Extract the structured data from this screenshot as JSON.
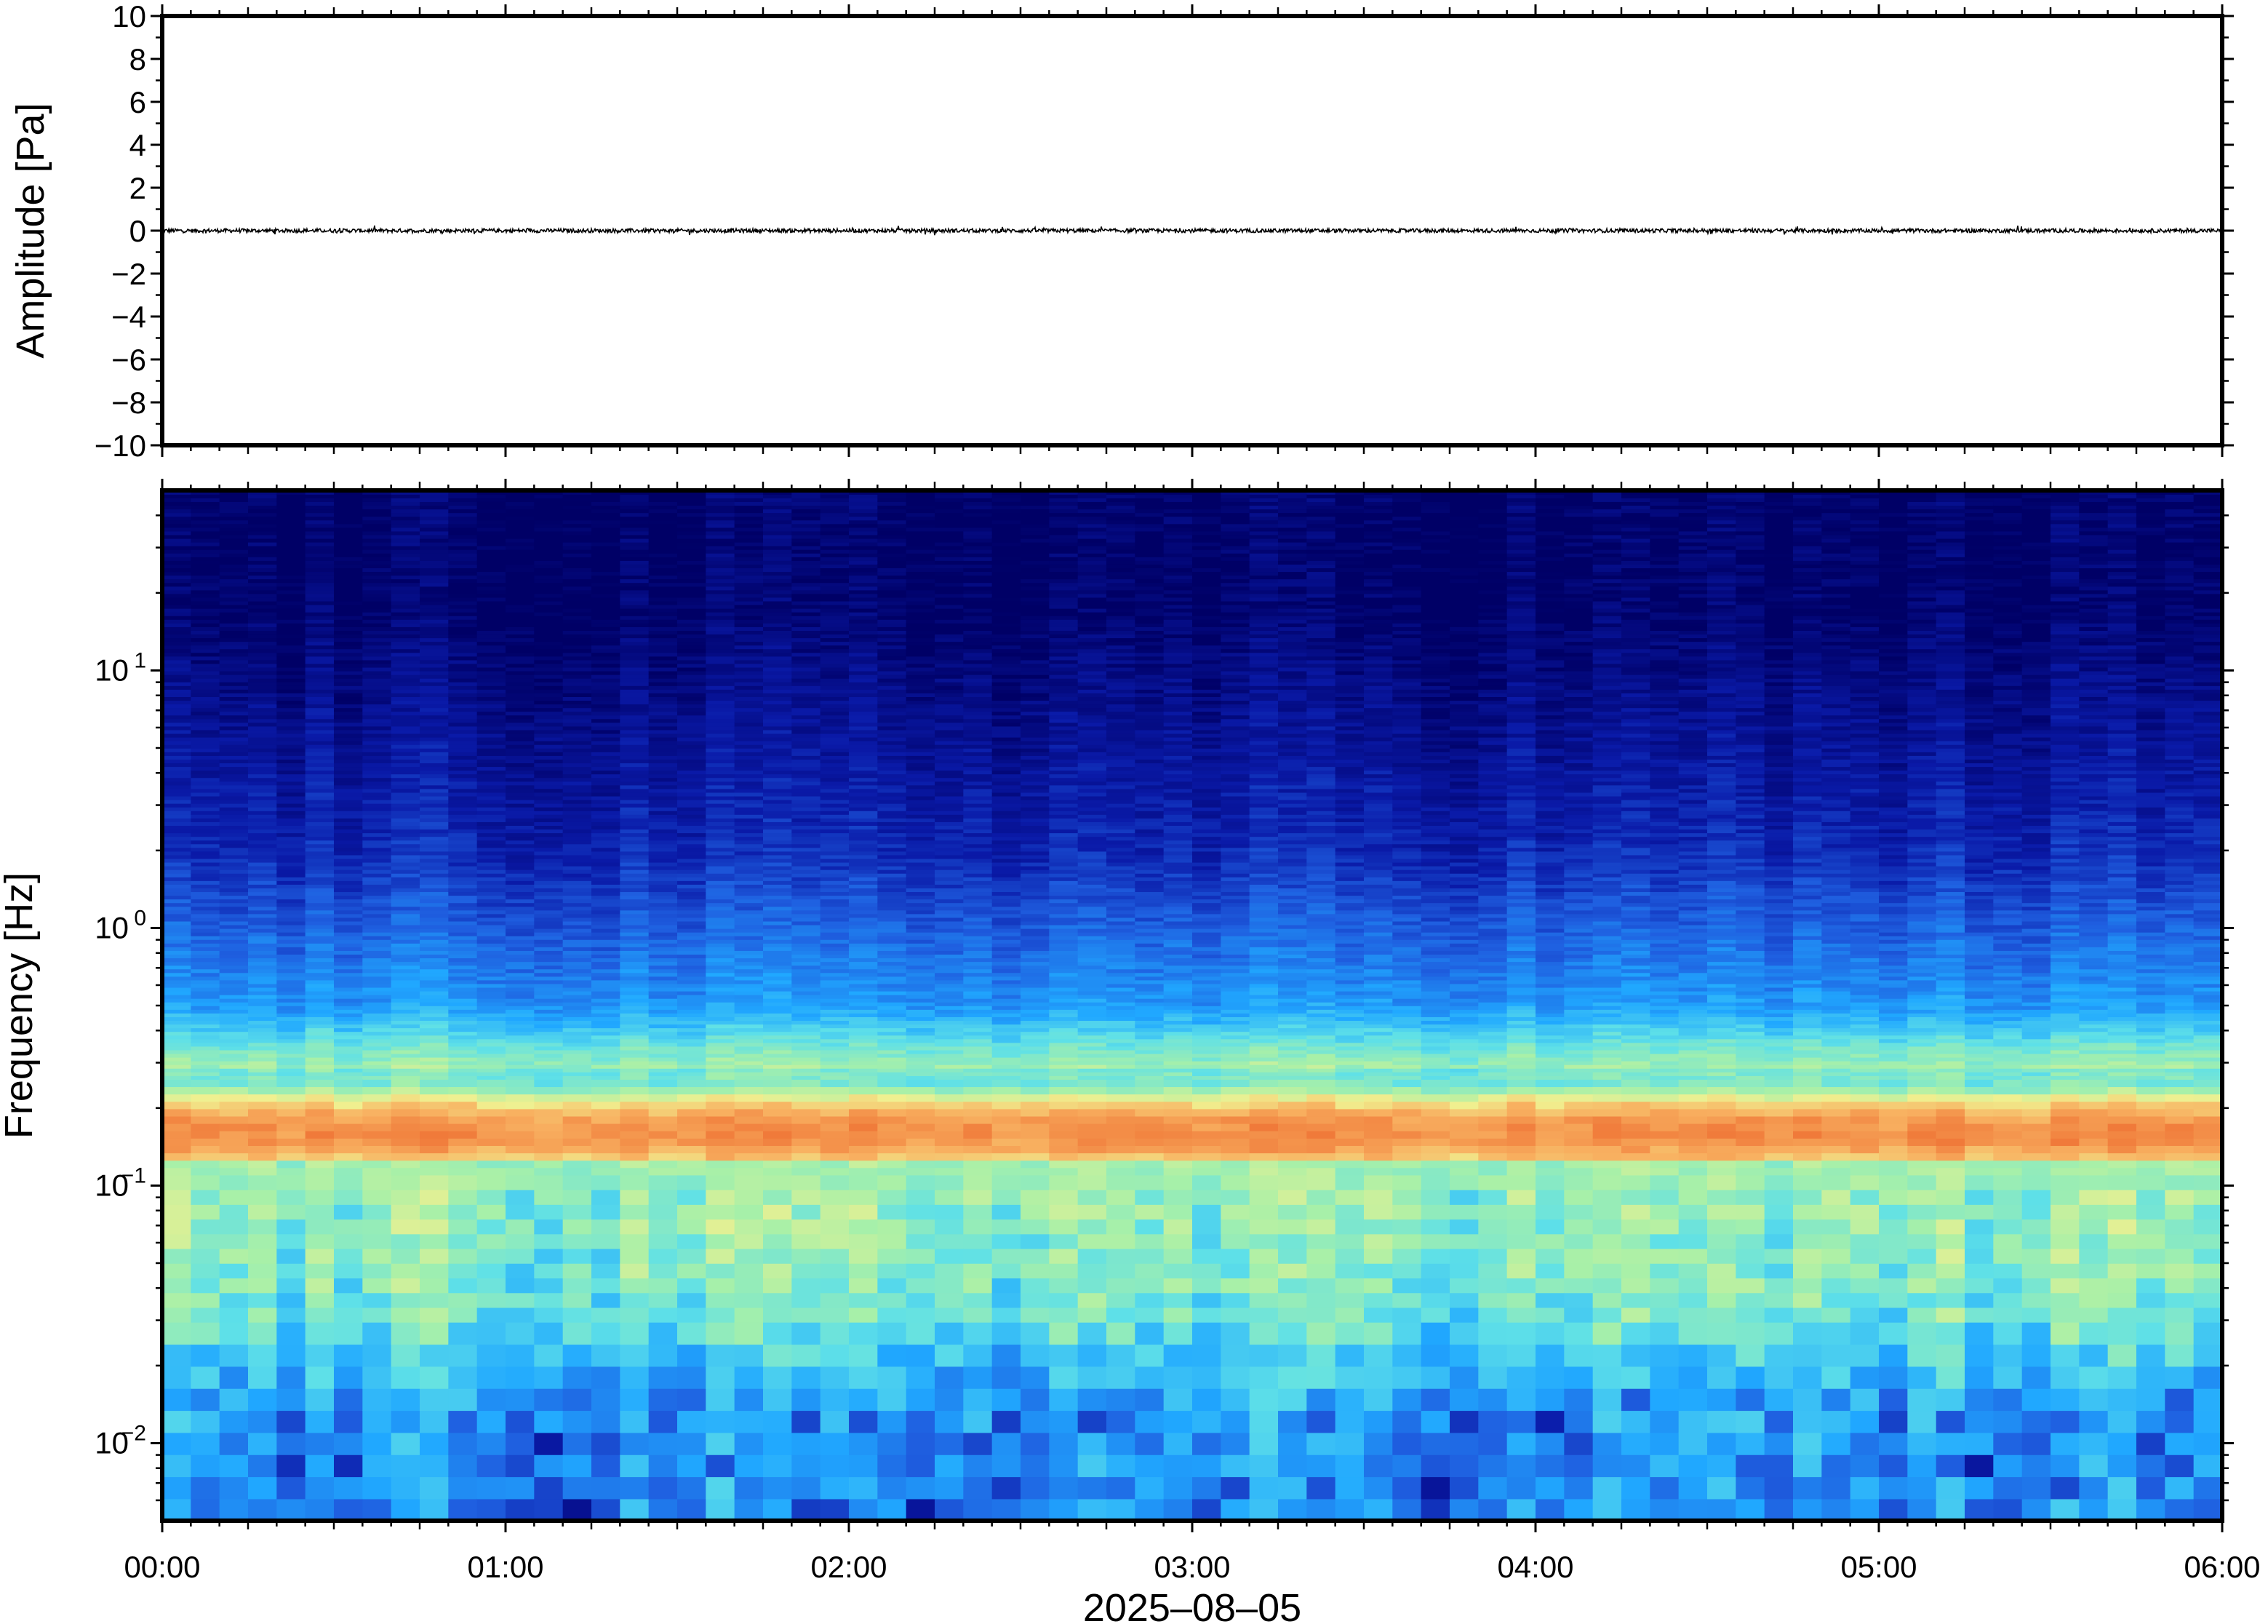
{
  "chart_data": [
    {
      "type": "line",
      "panel": "waveform",
      "ylabel": "Amplitude [Pa]",
      "ylim": [
        -10,
        10
      ],
      "yticks": [
        -10,
        -8,
        -6,
        -4,
        -2,
        0,
        2,
        4,
        6,
        8,
        10
      ],
      "ytick_labels": [
        "−10",
        "−8",
        "−6",
        "−4",
        "−2",
        "0",
        "2",
        "4",
        "6",
        "8",
        "10"
      ],
      "x_range": [
        "00:00",
        "06:00"
      ],
      "series": [
        {
          "values_description_range": [
            -0.2,
            0.2
          ]
        }
      ]
    },
    {
      "type": "heatmap",
      "panel": "spectrogram",
      "ylabel": "Frequency [Hz]",
      "yscale": "log",
      "ylim": [
        0.005,
        50
      ],
      "yticks": [
        0.01,
        0.1,
        1,
        10
      ],
      "ytick_labels": [
        {
          "base": "10",
          "exp": "−2"
        },
        {
          "base": "10",
          "exp": "−1"
        },
        {
          "base": "10",
          "exp": "0"
        },
        {
          "base": "10",
          "exp": "1"
        }
      ],
      "peak_band_hz": [
        0.13,
        0.2
      ],
      "colormap": [
        "#000066",
        "#0a1aa8",
        "#1f5fe0",
        "#20a8ff",
        "#5ee0e8",
        "#a8f0a8",
        "#f0f090",
        "#f8b060",
        "#f07a3a"
      ]
    }
  ],
  "xaxis": {
    "xlabel": "2025–08–05",
    "tick_labels": [
      "00:00",
      "01:00",
      "02:00",
      "03:00",
      "04:00",
      "05:00",
      "06:00"
    ],
    "range_hours": [
      0,
      6
    ]
  }
}
